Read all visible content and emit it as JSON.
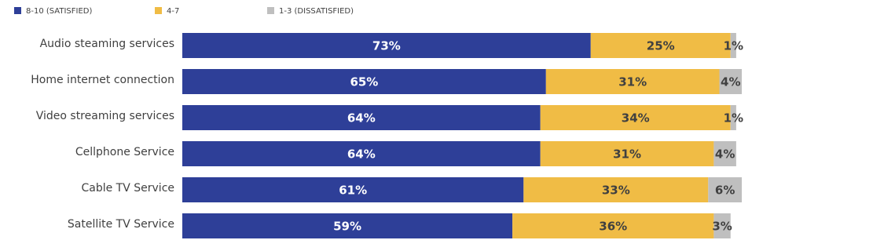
{
  "chart_data": {
    "type": "stacked-bar-horizontal",
    "categories": [
      "Audio steaming services",
      "Home internet connection",
      "Video streaming services",
      "Cellphone Service",
      "Cable TV Service",
      "Satellite TV Service"
    ],
    "series": [
      {
        "name": "8-10 (SATISFIED)",
        "color": "#2e3f98",
        "values": [
          73,
          65,
          64,
          64,
          61,
          59
        ],
        "value_labels": [
          "73%",
          "65%",
          "64%",
          "64%",
          "61%",
          "59%"
        ]
      },
      {
        "name": "4-7",
        "color": "#f0bc45",
        "values": [
          25,
          31,
          34,
          31,
          33,
          36
        ],
        "value_labels": [
          "25%",
          "31%",
          "34%",
          "31%",
          "33%",
          "36%"
        ]
      },
      {
        "name": "1-3 (DISSATISFIED)",
        "color": "#bfbfbf",
        "values": [
          1,
          4,
          1,
          4,
          6,
          3
        ],
        "value_labels": [
          "1%",
          "4%",
          "1%",
          "4%",
          "6%",
          "3%"
        ]
      }
    ]
  }
}
